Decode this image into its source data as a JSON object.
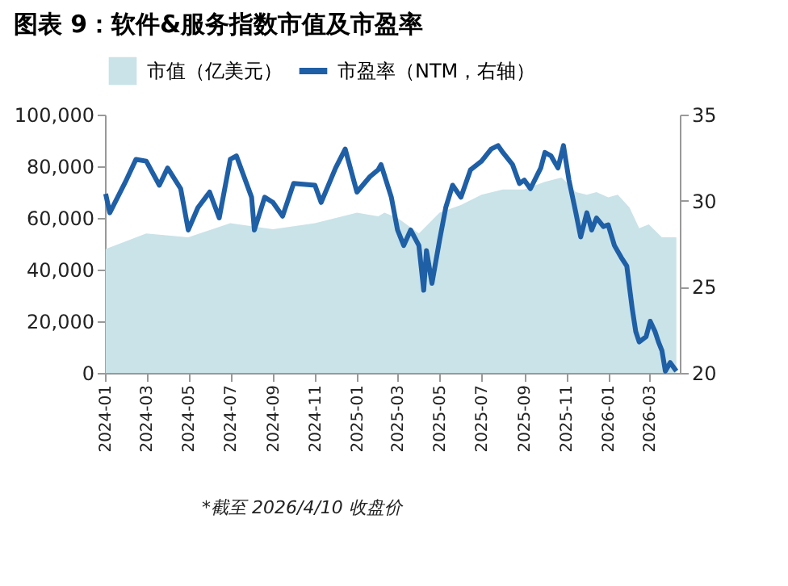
{
  "chart_data": {
    "type": "area",
    "title": "图表 9：软件&服务指数市值及市盈率",
    "series": [
      {
        "name": "市值（亿美元）",
        "color": "#c9e3e8",
        "x": [
          "2024-01-02",
          "2024-03-01",
          "2024-05-01",
          "2024-07-01",
          "2024-09-01",
          "2024-11-01",
          "2025-01-01",
          "2025-02-01",
          "2025-02-10",
          "2025-03-01",
          "2025-04-01",
          "2025-05-01",
          "2025-06-01",
          "2025-07-01",
          "2025-08-01",
          "2025-09-01",
          "2025-10-01",
          "2025-10-25",
          "2025-11-01",
          "2025-11-15",
          "2025-12-01",
          "2025-12-15",
          "2026-01-01",
          "2026-01-15",
          "2026-02-01",
          "2026-02-15",
          "2026-03-01",
          "2026-03-20",
          "2026-04-10"
        ],
        "values": [
          48000,
          54000,
          52500,
          58000,
          55600,
          58000,
          62000,
          60600,
          62000,
          60000,
          54000,
          62000,
          65000,
          69000,
          71000,
          71000,
          74000,
          75600,
          74000,
          70000,
          69000,
          70000,
          68000,
          69000,
          64000,
          56000,
          57500,
          52500,
          52500
        ]
      },
      {
        "name": "市盈率（NTM，右轴）",
        "type": "line",
        "axis": "y2",
        "color": "#1f5fa6",
        "x": [
          "2024-01-02",
          "2024-01-08",
          "2024-02-01",
          "2024-02-15",
          "2024-03-01",
          "2024-03-20",
          "2024-04-01",
          "2024-04-20",
          "2024-05-01",
          "2024-05-15",
          "2024-06-01",
          "2024-06-15",
          "2024-07-01",
          "2024-07-10",
          "2024-08-01",
          "2024-08-05",
          "2024-08-20",
          "2024-09-01",
          "2024-09-15",
          "2024-10-01",
          "2024-11-01",
          "2024-11-10",
          "2024-12-01",
          "2024-12-15",
          "2025-01-01",
          "2025-01-20",
          "2025-02-01",
          "2025-02-05",
          "2025-02-20",
          "2025-03-01",
          "2025-03-10",
          "2025-03-20",
          "2025-04-01",
          "2025-04-08",
          "2025-04-12",
          "2025-04-20",
          "2025-05-01",
          "2025-05-10",
          "2025-05-20",
          "2025-06-01",
          "2025-06-15",
          "2025-07-01",
          "2025-07-15",
          "2025-07-25",
          "2025-08-01",
          "2025-08-15",
          "2025-08-25",
          "2025-09-01",
          "2025-09-10",
          "2025-09-25",
          "2025-10-01",
          "2025-10-10",
          "2025-10-20",
          "2025-10-28",
          "2025-11-05",
          "2025-11-15",
          "2025-11-22",
          "2025-12-01",
          "2025-12-08",
          "2025-12-15",
          "2025-12-25",
          "2026-01-01",
          "2026-01-10",
          "2026-01-20",
          "2026-01-28",
          "2026-02-05",
          "2026-02-10",
          "2026-02-15",
          "2026-02-25",
          "2026-03-03",
          "2026-03-10",
          "2026-03-15",
          "2026-03-20",
          "2026-03-25",
          "2026-04-01",
          "2026-04-10"
        ],
        "values": [
          30.4,
          29.3,
          31.2,
          32.4,
          32.3,
          30.9,
          31.9,
          30.7,
          28.3,
          29.6,
          30.5,
          29.0,
          32.4,
          32.6,
          30.2,
          28.3,
          30.2,
          29.9,
          29.1,
          31.0,
          30.9,
          29.9,
          31.9,
          33.0,
          30.5,
          31.4,
          31.8,
          32.1,
          30.2,
          28.3,
          27.4,
          28.3,
          27.4,
          24.8,
          27.1,
          25.2,
          27.7,
          29.6,
          30.9,
          30.2,
          31.8,
          32.3,
          33.0,
          33.2,
          32.8,
          32.1,
          31.0,
          31.2,
          30.7,
          31.9,
          32.8,
          32.6,
          31.9,
          33.2,
          31.2,
          29.3,
          27.9,
          29.3,
          28.3,
          29.0,
          28.5,
          28.6,
          27.4,
          26.7,
          26.2,
          23.7,
          22.4,
          21.8,
          22.1,
          23.0,
          22.4,
          21.8,
          21.3,
          20.1,
          20.6,
          20.1
        ]
      }
    ],
    "xlim": [
      "2024-01-01",
      "2026-04-15"
    ],
    "xticks": [
      "2024-01",
      "2024-03",
      "2024-05",
      "2024-07",
      "2024-09",
      "2024-11",
      "2025-01",
      "2025-03",
      "2025-05",
      "2025-07",
      "2025-09",
      "2025-11",
      "2026-01",
      "2026-03"
    ],
    "ylim": [
      0,
      100000
    ],
    "yticks": [
      0,
      {
        "value": 20000,
        "label": "20,000"
      },
      {
        "value": 40000,
        "label": "40,000"
      },
      {
        "value": 60000,
        "label": "60,000"
      },
      {
        "value": 80000,
        "label": "80,000"
      },
      {
        "value": 100000,
        "label": "100,000"
      }
    ],
    "y2lim": [
      20,
      35
    ],
    "y2ticks": [
      20,
      25,
      30,
      35
    ],
    "legend": "top",
    "grid": false,
    "line_style": "solid",
    "marker": "none",
    "annotations": [
      "*截至 2026/4/10 收盘价"
    ]
  }
}
